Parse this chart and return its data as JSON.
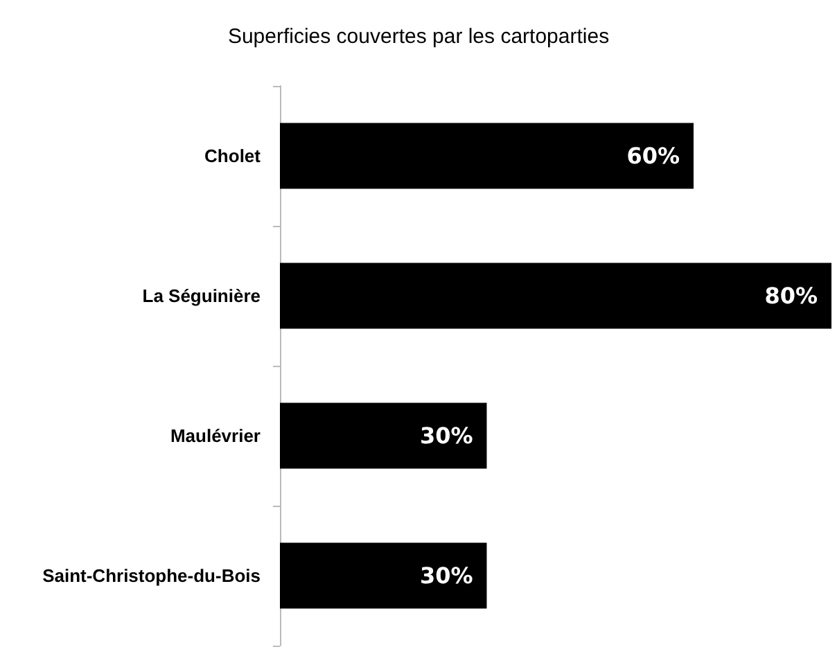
{
  "chart_data": {
    "type": "bar",
    "orientation": "horizontal",
    "title": "Superficies couvertes par les cartoparties",
    "categories": [
      "Cholet",
      "La Séguinière",
      "Maulévrier",
      "Saint-Christophe-du-Bois"
    ],
    "values": [
      60,
      80,
      30,
      30
    ],
    "value_labels": [
      "60%",
      "80%",
      "30%",
      "30%"
    ],
    "color": "#000000",
    "grid": false
  }
}
